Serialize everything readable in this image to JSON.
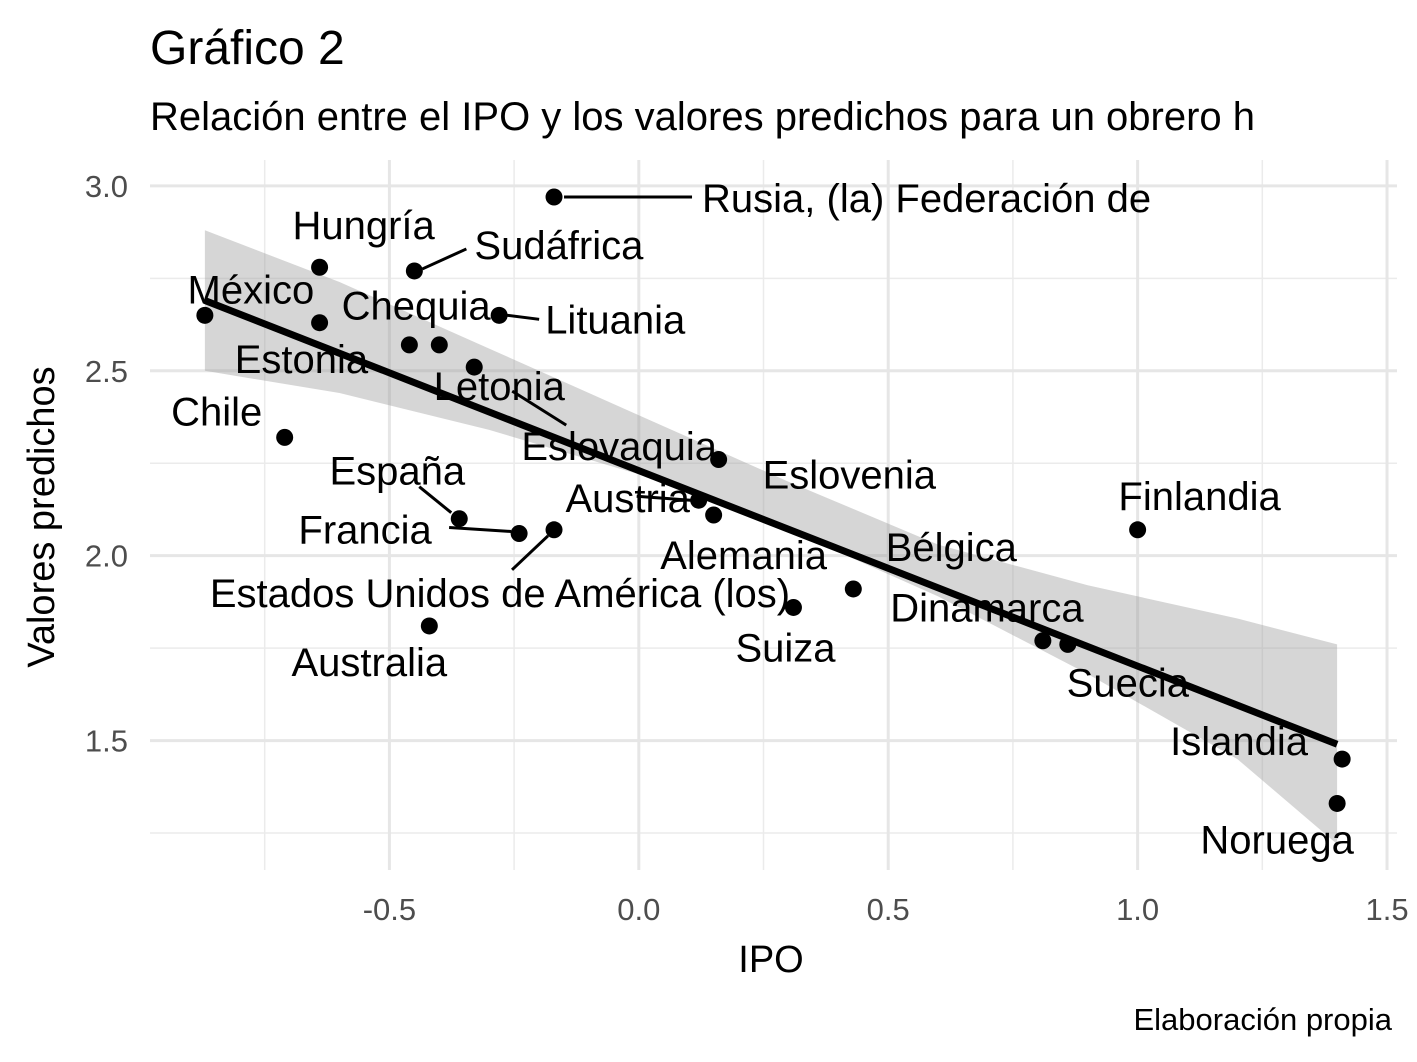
{
  "chart_data": {
    "type": "scatter",
    "title": "Gráfico 2",
    "subtitle": "Relación entre el IPO y los valores predichos para un obrero h",
    "xlabel": "IPO",
    "ylabel": "Valores predichos",
    "caption": "Elaboración propia",
    "xlim": [
      -0.98,
      1.52
    ],
    "ylim": [
      1.15,
      3.07
    ],
    "x_ticks": [
      -0.5,
      0.0,
      0.5,
      1.0,
      1.5
    ],
    "x_tick_labels": [
      "-0.5",
      "0.0",
      "0.5",
      "1.0",
      "1.5"
    ],
    "y_ticks": [
      1.5,
      2.0,
      2.5,
      3.0
    ],
    "y_tick_labels": [
      "1.5",
      "2.0",
      "2.5",
      "3.0"
    ],
    "grid": true,
    "points": [
      {
        "label": "Rusia, (la) Federación de",
        "x": -0.17,
        "y": 2.97
      },
      {
        "label": "Hungría",
        "x": -0.64,
        "y": 2.78
      },
      {
        "label": "Sudáfrica",
        "x": -0.45,
        "y": 2.77
      },
      {
        "label": "México",
        "x": -0.87,
        "y": 2.65
      },
      {
        "label": "Chequia",
        "x": -0.64,
        "y": 2.63
      },
      {
        "label": "Lituania",
        "x": -0.28,
        "y": 2.65
      },
      {
        "label": "Estonia",
        "x": -0.46,
        "y": 2.57
      },
      {
        "label": "Letonia",
        "x": -0.4,
        "y": 2.57
      },
      {
        "label": "Eslovaquia",
        "x": -0.33,
        "y": 2.51
      },
      {
        "label": "Chile",
        "x": -0.71,
        "y": 2.32
      },
      {
        "label": "Eslovenia",
        "x": 0.16,
        "y": 2.26
      },
      {
        "label": "España",
        "x": -0.36,
        "y": 2.1
      },
      {
        "label": "Austria",
        "x": 0.12,
        "y": 2.15
      },
      {
        "label": "Francia",
        "x": -0.24,
        "y": 2.06
      },
      {
        "label": "Estados Unidos de América (los)",
        "x": -0.17,
        "y": 2.07
      },
      {
        "label": "Alemania",
        "x": 0.15,
        "y": 2.11
      },
      {
        "label": "Finlandia",
        "x": 1.0,
        "y": 2.07
      },
      {
        "label": "Bélgica",
        "x": 0.43,
        "y": 1.91
      },
      {
        "label": "Suiza",
        "x": 0.31,
        "y": 1.86
      },
      {
        "label": "Australia",
        "x": -0.42,
        "y": 1.81
      },
      {
        "label": "Dinamarca",
        "x": 0.81,
        "y": 1.77
      },
      {
        "label": "Suecia",
        "x": 0.86,
        "y": 1.76
      },
      {
        "label": "Islandia",
        "x": 1.41,
        "y": 1.45
      },
      {
        "label": "Noruega",
        "x": 1.4,
        "y": 1.33
      }
    ],
    "trend_line": {
      "x": [
        -0.87,
        1.4
      ],
      "y": [
        2.69,
        1.49
      ]
    },
    "confidence_band": {
      "x": [
        -0.87,
        -0.6,
        -0.3,
        0.0,
        0.3,
        0.6,
        0.9,
        1.2,
        1.4
      ],
      "upper": [
        2.88,
        2.74,
        2.56,
        2.38,
        2.2,
        2.03,
        1.92,
        1.83,
        1.76
      ],
      "lower": [
        2.5,
        2.44,
        2.34,
        2.22,
        2.07,
        1.89,
        1.68,
        1.45,
        1.22
      ]
    }
  }
}
